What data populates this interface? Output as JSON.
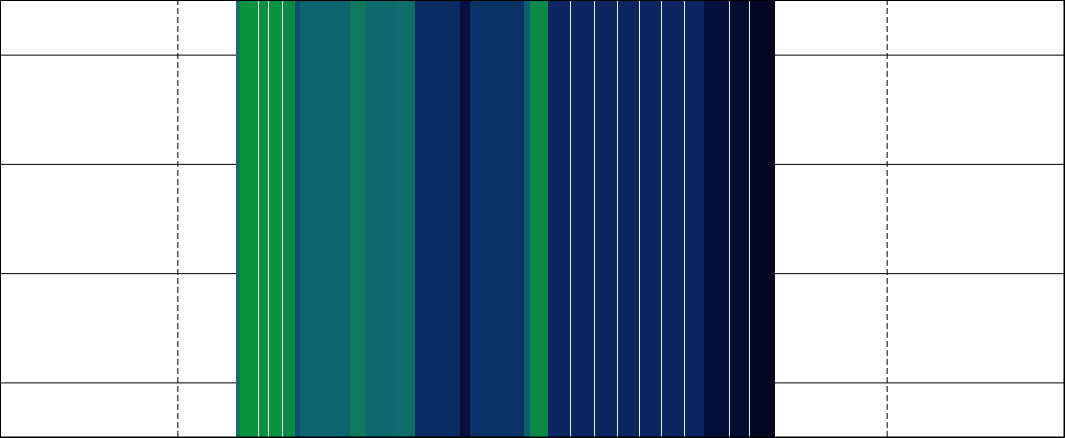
{
  "chart_data": {
    "type": "heatmap",
    "x_edges": [
      2.659,
      2.704,
      2.907,
      2.918,
      3.02,
      3.031,
      3.177,
      3.189,
      3.324,
      3.38,
      3.944,
      4.113,
      4.451,
      4.676,
      5.183,
      5.296,
      5.915,
      5.972,
      6.175,
      6.434,
      6.445,
      6.704,
      6.715,
      6.963,
      6.975,
      7.211,
      7.223,
      7.459,
      7.47,
      7.718,
      7.73,
      7.944,
      8.225,
      8.237,
      8.451,
      8.462,
      8.744
    ],
    "values": [
      0.65,
      0.85,
      1,
      0.85,
      1,
      0.85,
      1,
      0.8,
      0.5,
      0.58,
      0.7,
      0.6,
      0.62,
      0.35,
      0.15,
      0.38,
      0.55,
      0.8,
      0.33,
      1,
      0.33,
      1,
      0.33,
      1,
      0.33,
      1,
      0.33,
      1,
      0.33,
      1,
      0.33,
      0.15,
      1,
      0.1,
      1,
      0.05
    ],
    "zlim": [
      0,
      1
    ],
    "xlim": [
      0,
      12
    ],
    "xticks": [
      2,
      10
    ],
    "ylim": [
      0,
      4
    ],
    "yticks": [
      0.5,
      1.5,
      2.5,
      3.5
    ],
    "grid": true,
    "tick_labels": false
  }
}
